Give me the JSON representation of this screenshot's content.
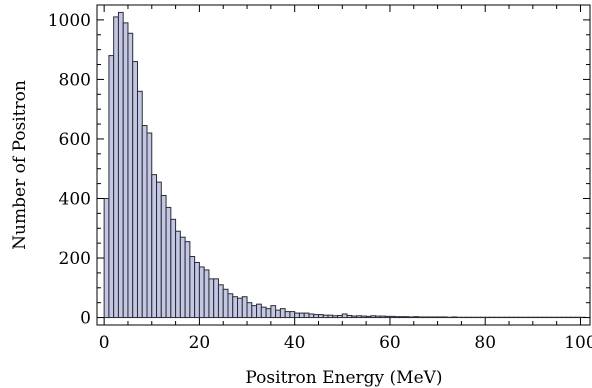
{
  "chart_data": {
    "type": "bar",
    "title": "",
    "xlabel": "Positron Energy (MeV)",
    "ylabel": "Number of Positron",
    "xlim": [
      -1.5,
      102
    ],
    "ylim": [
      -25,
      1050
    ],
    "bin_width": 1,
    "x_ticks": [
      0,
      20,
      40,
      60,
      80,
      100
    ],
    "x_tick_labels": [
      "0",
      "20",
      "40",
      "60",
      "80",
      "100"
    ],
    "y_ticks": [
      0,
      200,
      400,
      600,
      800,
      1000
    ],
    "y_tick_labels": [
      "0",
      "200",
      "400",
      "600",
      "800",
      "1000"
    ],
    "grid": false,
    "bins_start": [
      0,
      1,
      2,
      3,
      4,
      5,
      6,
      7,
      8,
      9,
      10,
      11,
      12,
      13,
      14,
      15,
      16,
      17,
      18,
      19,
      20,
      21,
      22,
      23,
      24,
      25,
      26,
      27,
      28,
      29,
      30,
      31,
      32,
      33,
      34,
      35,
      36,
      37,
      38,
      39,
      40,
      41,
      42,
      43,
      44,
      45,
      46,
      47,
      48,
      49,
      50,
      51,
      52,
      53,
      54,
      55,
      56,
      57,
      58,
      59,
      60,
      61,
      62,
      63,
      64,
      65,
      66,
      67,
      68,
      69,
      70,
      71,
      72,
      73,
      74,
      75,
      76,
      77,
      78,
      79,
      80,
      81,
      82,
      83,
      84,
      85,
      86,
      87,
      88,
      89,
      90,
      91,
      92,
      93,
      94,
      95,
      96,
      97,
      98,
      99,
      100
    ],
    "values": [
      400,
      880,
      1010,
      1025,
      990,
      955,
      860,
      760,
      645,
      620,
      480,
      455,
      410,
      370,
      330,
      290,
      270,
      255,
      205,
      185,
      170,
      160,
      130,
      130,
      110,
      95,
      80,
      70,
      65,
      70,
      50,
      40,
      45,
      35,
      30,
      40,
      25,
      30,
      20,
      20,
      15,
      15,
      15,
      12,
      10,
      10,
      8,
      8,
      6,
      7,
      12,
      7,
      5,
      6,
      5,
      4,
      6,
      5,
      5,
      4,
      4,
      3,
      3,
      3,
      2,
      3,
      2,
      2,
      2,
      2,
      2,
      2,
      1,
      2,
      1,
      1,
      1,
      1,
      1,
      1,
      1,
      1,
      1,
      1,
      1,
      1,
      1,
      1,
      1,
      1,
      1,
      1,
      1,
      1,
      1,
      1,
      1,
      1,
      1,
      1,
      1
    ]
  }
}
